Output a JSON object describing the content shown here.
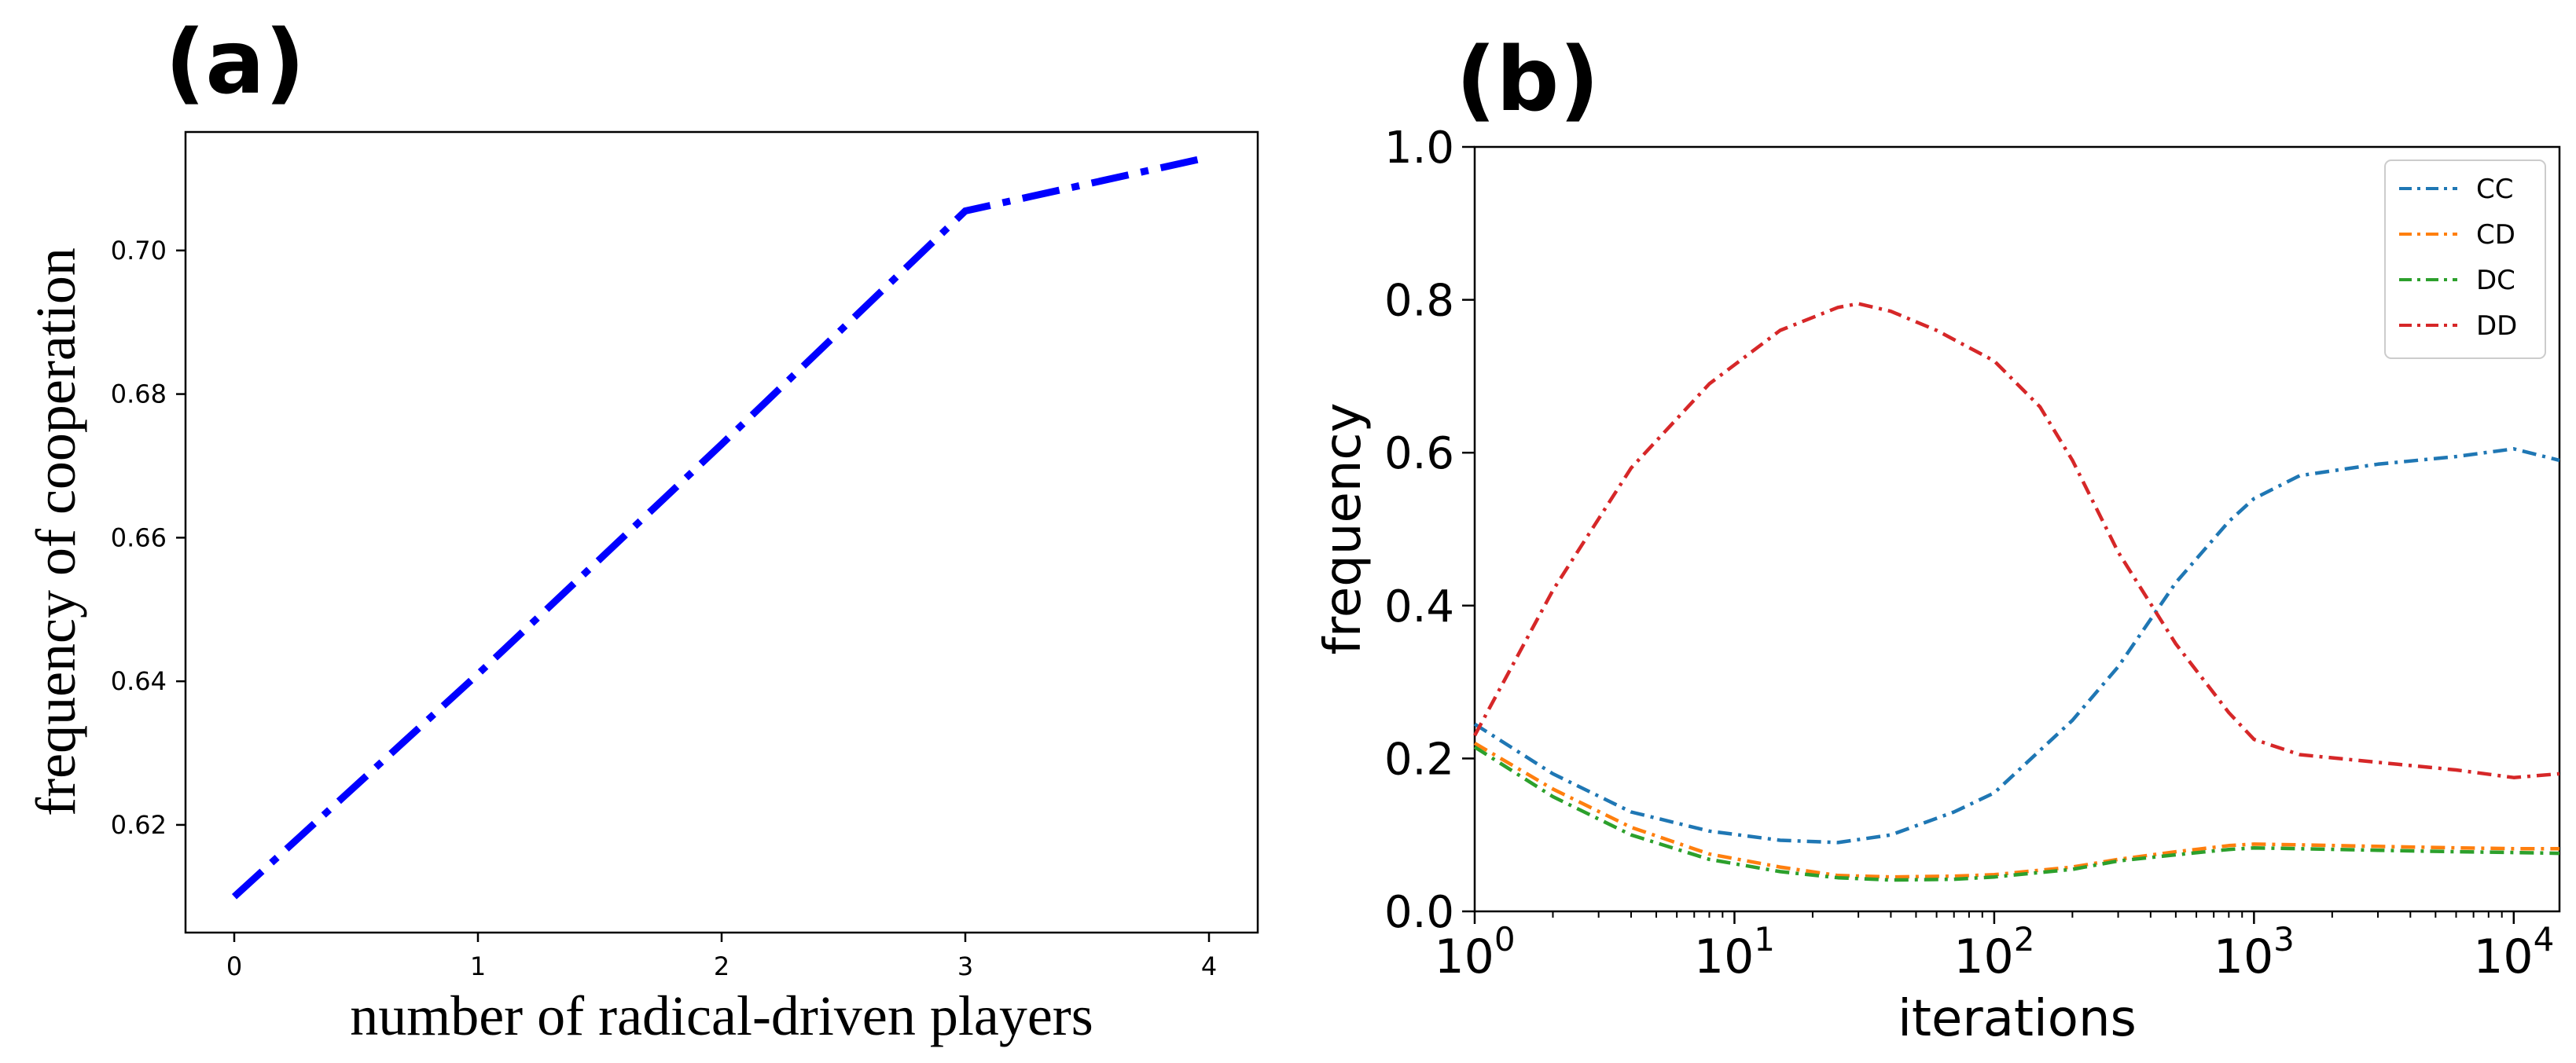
{
  "chart_data": [
    {
      "panel": "(a)",
      "type": "line",
      "xlabel": "number of radical-driven players",
      "ylabel": "frequency of cooperation",
      "xticks": [
        "0",
        "1",
        "2",
        "3",
        "4"
      ],
      "yticks": [
        "0.62",
        "0.64",
        "0.66",
        "0.68",
        "0.70"
      ],
      "xlim": [
        -0.2,
        4.2
      ],
      "ylim": [
        0.605,
        0.7165
      ],
      "series": [
        {
          "name": "cooperation",
          "color": "#0000ff",
          "style": "dashdot",
          "x": [
            0,
            1,
            2,
            3,
            4
          ],
          "y": [
            0.61,
            0.641,
            0.673,
            0.7055,
            0.713
          ]
        }
      ]
    },
    {
      "panel": "(b)",
      "type": "line",
      "xscale": "log",
      "xlabel": "iterations",
      "ylabel": "frequency",
      "xticks": [
        {
          "base": "10",
          "exp": "0"
        },
        {
          "base": "10",
          "exp": "1"
        },
        {
          "base": "10",
          "exp": "2"
        },
        {
          "base": "10",
          "exp": "3"
        },
        {
          "base": "10",
          "exp": "4"
        }
      ],
      "yticks": [
        "0.0",
        "0.2",
        "0.4",
        "0.6",
        "0.8",
        "1.0"
      ],
      "xlim": [
        1,
        15000
      ],
      "ylim": [
        0,
        1
      ],
      "legend_position": "top-right",
      "series": [
        {
          "name": "CC",
          "color": "#1f77b4",
          "x": [
            1,
            2,
            4,
            8,
            15,
            25,
            40,
            70,
            100,
            200,
            300,
            500,
            800,
            1000,
            1500,
            3000,
            6000,
            10000,
            15000
          ],
          "y": [
            0.245,
            0.18,
            0.13,
            0.105,
            0.093,
            0.09,
            0.1,
            0.13,
            0.155,
            0.25,
            0.32,
            0.43,
            0.51,
            0.54,
            0.57,
            0.585,
            0.595,
            0.605,
            0.59
          ]
        },
        {
          "name": "CD",
          "color": "#ff7f0e",
          "x": [
            1,
            2,
            4,
            8,
            15,
            25,
            40,
            70,
            100,
            200,
            300,
            500,
            800,
            1000,
            1500,
            3000,
            6000,
            10000,
            15000
          ],
          "y": [
            0.22,
            0.16,
            0.11,
            0.075,
            0.058,
            0.047,
            0.045,
            0.046,
            0.048,
            0.058,
            0.068,
            0.078,
            0.086,
            0.088,
            0.087,
            0.085,
            0.083,
            0.082,
            0.082
          ]
        },
        {
          "name": "DC",
          "color": "#2ca02c",
          "x": [
            1,
            2,
            4,
            8,
            15,
            25,
            40,
            70,
            100,
            200,
            300,
            500,
            800,
            1000,
            1500,
            3000,
            6000,
            10000,
            15000
          ],
          "y": [
            0.215,
            0.15,
            0.1,
            0.068,
            0.052,
            0.044,
            0.041,
            0.042,
            0.045,
            0.055,
            0.066,
            0.074,
            0.081,
            0.083,
            0.082,
            0.08,
            0.078,
            0.077,
            0.076
          ]
        },
        {
          "name": "DD",
          "color": "#d62728",
          "x": [
            1,
            2,
            4,
            8,
            15,
            25,
            30,
            40,
            60,
            100,
            150,
            200,
            300,
            500,
            800,
            1000,
            1500,
            3000,
            6000,
            10000,
            15000
          ],
          "y": [
            0.23,
            0.42,
            0.58,
            0.69,
            0.76,
            0.79,
            0.795,
            0.785,
            0.76,
            0.72,
            0.66,
            0.59,
            0.47,
            0.35,
            0.26,
            0.225,
            0.205,
            0.195,
            0.185,
            0.175,
            0.18
          ]
        }
      ]
    }
  ]
}
